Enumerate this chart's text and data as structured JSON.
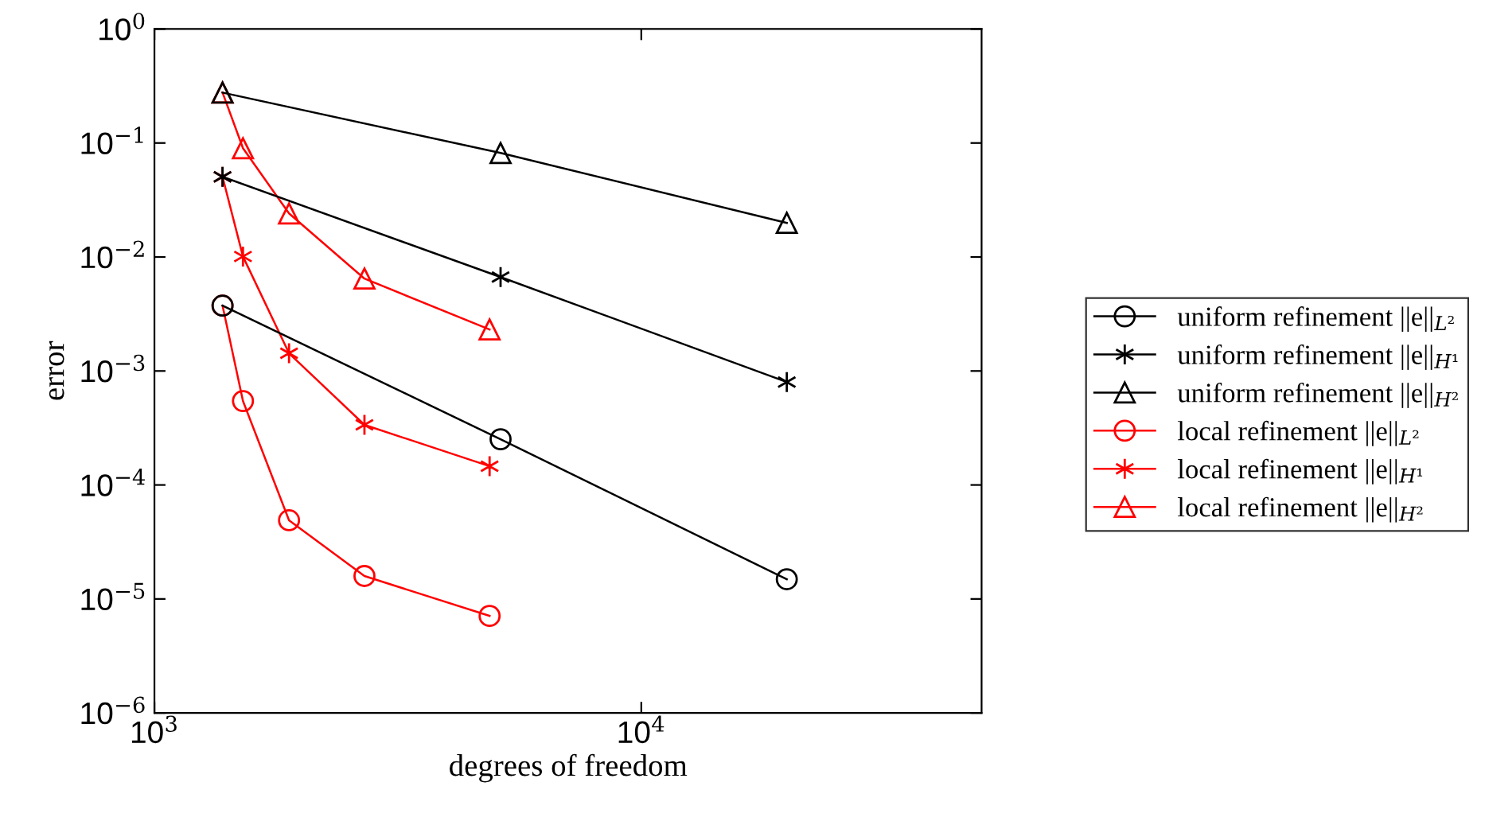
{
  "chart_data": {
    "type": "line",
    "xlabel": "degrees of freedom",
    "ylabel": "error",
    "log": "xy",
    "xlim": [
      1000,
      50000
    ],
    "ylim": [
      1e-06,
      1
    ],
    "xticks": [
      {
        "value": 1000,
        "label": "10$^{3}$"
      },
      {
        "value": 10000,
        "label": "10$^{4}$"
      }
    ],
    "yticks": [
      {
        "value": 1e-06,
        "label": "10$^{−6}$"
      },
      {
        "value": 1e-05,
        "label": "10$^{−5}$"
      },
      {
        "value": 0.0001,
        "label": "10$^{−4}$"
      },
      {
        "value": 0.001,
        "label": "10$^{−3}$"
      },
      {
        "value": 0.01,
        "label": "10$^{−2}$"
      },
      {
        "value": 0.1,
        "label": "10$^{−1}$"
      },
      {
        "value": 1,
        "label": "10$^{0}$"
      }
    ],
    "grid": false,
    "legend": "right",
    "line_style": "solid",
    "series": [
      {
        "name": "uniform refinement ||e||$_{L²}$",
        "color": "#000000",
        "marker": "circle",
        "x": [
          1380,
          5140,
          19900
        ],
        "values": [
          0.00374,
          0.000252,
          1.49e-05
        ]
      },
      {
        "name": "uniform refinement ||e||$_{H¹}$",
        "color": "#000000",
        "marker": "cross",
        "x": [
          1380,
          5140,
          19900
        ],
        "values": [
          0.0505,
          0.00667,
          0.0008
        ]
      },
      {
        "name": "uniform refinement ||e||$_{H²}$",
        "color": "#000000",
        "marker": "triangle",
        "x": [
          1380,
          5140,
          19900
        ],
        "values": [
          0.277,
          0.0817,
          0.0199
        ]
      },
      {
        "name": "local refinement ||e||$_{L²}$",
        "color": "#ff0000",
        "marker": "circle",
        "x": [
          1380,
          1520,
          1890,
          2700,
          4880
        ],
        "values": [
          0.00374,
          0.000545,
          4.9e-05,
          1.59e-05,
          7.1e-06
        ]
      },
      {
        "name": "local refinement ||e||$_{H¹}$",
        "color": "#ff0000",
        "marker": "cross",
        "x": [
          1380,
          1520,
          1890,
          2700,
          4880
        ],
        "values": [
          0.0505,
          0.0101,
          0.00143,
          0.000337,
          0.000146
        ]
      },
      {
        "name": "local refinement ||e||$_{H²}$",
        "color": "#ff0000",
        "marker": "triangle",
        "x": [
          1380,
          1520,
          1890,
          2700,
          4880
        ],
        "values": [
          0.277,
          0.09,
          0.0241,
          0.00646,
          0.00231
        ]
      }
    ]
  }
}
